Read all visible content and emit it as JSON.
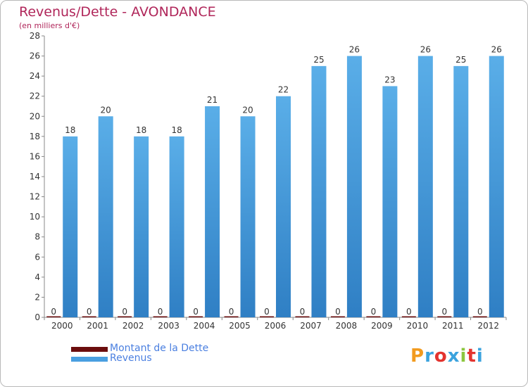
{
  "header": {
    "title": "Revenus/Dette - AVONDANCE",
    "subtitle": "(en milliers d'€)"
  },
  "chart_data": {
    "type": "bar",
    "title": "Revenus/Dette - AVONDANCE",
    "subtitle": "(en milliers d'€)",
    "categories": [
      "2000",
      "2001",
      "2002",
      "2003",
      "2004",
      "2005",
      "2006",
      "2007",
      "2008",
      "2009",
      "2010",
      "2011",
      "2012"
    ],
    "series": [
      {
        "name": "Montant de la Dette",
        "values": [
          0,
          0,
          0,
          0,
          0,
          0,
          0,
          0,
          0,
          0,
          0,
          0,
          0
        ],
        "color": "#6b0d0d"
      },
      {
        "name": "Revenus",
        "values": [
          18,
          20,
          18,
          18,
          21,
          20,
          22,
          25,
          26,
          23,
          26,
          25,
          26
        ],
        "color": "#4a9fe0"
      }
    ],
    "ylim": [
      0,
      28
    ],
    "yticks": [
      0,
      2,
      4,
      6,
      8,
      10,
      12,
      14,
      16,
      18,
      20,
      22,
      24,
      26,
      28
    ],
    "grid": false,
    "legend": "bottom-left"
  },
  "legend": {
    "items": [
      {
        "label": "Montant de la Dette",
        "color": "#6b0d0d"
      },
      {
        "label": "Revenus",
        "color": "#4a9fe0"
      }
    ]
  },
  "logo": {
    "letters": [
      "P",
      "r",
      "o",
      "x",
      "i",
      "t",
      "i"
    ],
    "colors": [
      "#f29b1f",
      "#3ba3de",
      "#e3342f",
      "#3ba3de",
      "#8cc63f",
      "#e3342f",
      "#3ba3de"
    ]
  }
}
